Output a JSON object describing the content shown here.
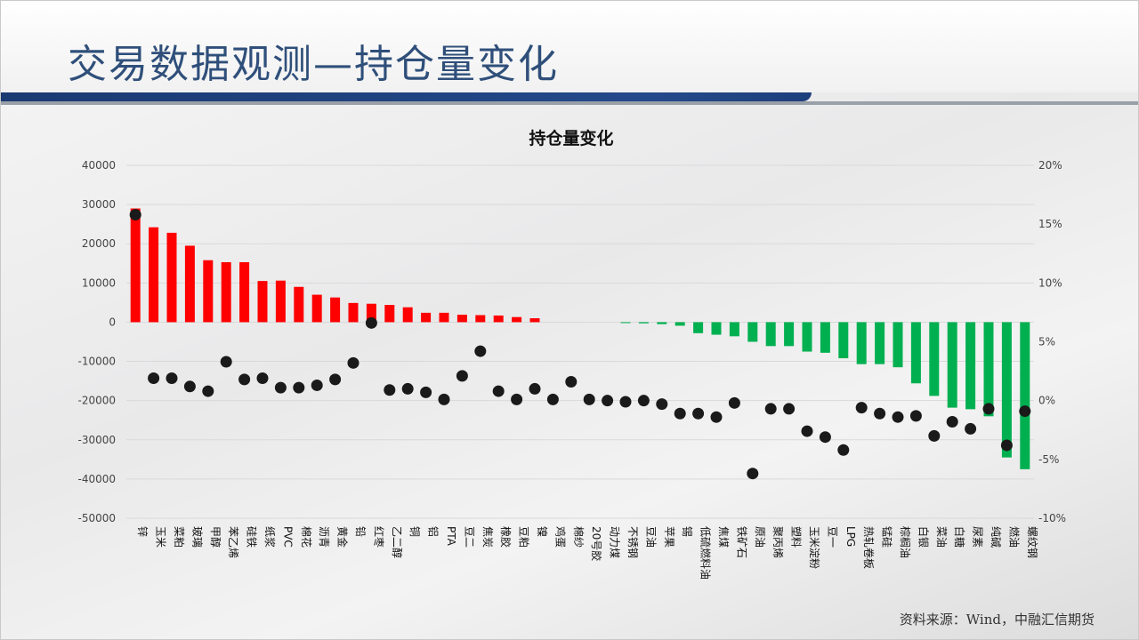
{
  "page": {
    "title": "交易数据观测—持仓量变化",
    "source": "资料来源：Wind，中融汇信期货"
  },
  "colors": {
    "positive_bar": "#ff0000",
    "negative_bar": "#00b050",
    "marker": "#1a1a1a",
    "title_text": "#2f4f7a"
  },
  "chart_data": {
    "type": "bar",
    "title": "持仓量变化",
    "left_axis": {
      "ylim": [
        -50000,
        40000
      ],
      "ticks": [
        "40000",
        "30000",
        "20000",
        "10000",
        "0",
        "-10000",
        "-20000",
        "-30000",
        "-40000",
        "-50000"
      ]
    },
    "right_axis": {
      "ylim": [
        -10,
        20
      ],
      "ticks": [
        "20%",
        "15%",
        "10%",
        "5%",
        "0%",
        "-5%",
        "-10%"
      ]
    },
    "grid": true,
    "legend": "none",
    "categories": [
      "锌",
      "玉米",
      "菜粕",
      "玻璃",
      "甲醇",
      "苯乙烯",
      "硅铁",
      "纸浆",
      "PVC",
      "棉花",
      "沥青",
      "黄金",
      "铅",
      "红枣",
      "乙二醇",
      "铜",
      "铝",
      "PTA",
      "豆二",
      "焦炭",
      "橡胶",
      "豆粕",
      "镍",
      "鸡蛋",
      "棉纱",
      "20号胶",
      "动力煤",
      "不锈钢",
      "豆油",
      "苹果",
      "锡",
      "低硫燃料油",
      "焦煤",
      "铁矿石",
      "原油",
      "聚丙烯",
      "塑料",
      "玉米淀粉",
      "豆一",
      "LPG",
      "热轧卷板",
      "锰硅",
      "棕榈油",
      "白银",
      "菜油",
      "白糖",
      "尿素",
      "纯碱",
      "燃油",
      "螺纹钢"
    ],
    "series": [
      {
        "axis": "left",
        "kind": "bar",
        "values": [
          29000,
          24200,
          22800,
          19500,
          15800,
          15300,
          15300,
          10500,
          10600,
          9000,
          7000,
          6300,
          4900,
          4700,
          4400,
          3800,
          2400,
          2400,
          1900,
          1800,
          1700,
          1300,
          1000,
          0,
          0,
          0,
          0,
          -200,
          -300,
          -500,
          -900,
          -2800,
          -3200,
          -3600,
          -5000,
          -6100,
          -6100,
          -7500,
          -7800,
          -9200,
          -10700,
          -10700,
          -11500,
          -15600,
          -18800,
          -21800,
          -22200,
          -24000,
          -34500,
          -37500
        ]
      },
      {
        "axis": "right",
        "kind": "scatter",
        "values": [
          15.8,
          1.9,
          1.9,
          1.2,
          0.8,
          3.3,
          1.8,
          1.9,
          1.1,
          1.1,
          1.3,
          1.8,
          3.2,
          6.6,
          0.9,
          1.0,
          0.7,
          0.1,
          2.1,
          4.2,
          0.8,
          0.1,
          1.0,
          0.1,
          1.6,
          0.1,
          0.0,
          -0.1,
          0.0,
          -0.3,
          -1.1,
          -1.1,
          -1.4,
          -0.2,
          -6.2,
          -0.7,
          -0.7,
          -2.6,
          -3.1,
          -4.2,
          -0.6,
          -1.1,
          -1.4,
          -1.3,
          -3.0,
          -1.8,
          -2.4,
          -0.7,
          -3.8,
          -0.9
        ]
      }
    ]
  }
}
